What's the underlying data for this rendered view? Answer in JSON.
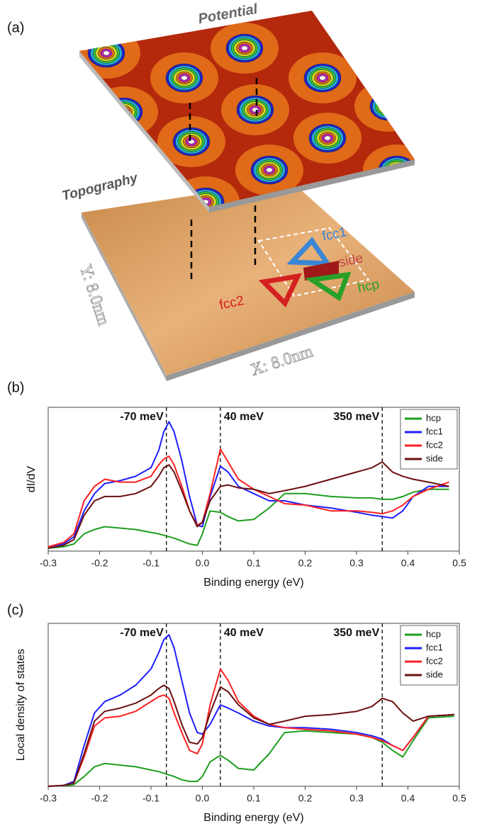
{
  "figure_a": {
    "label": "(a)",
    "potential": "Potential",
    "topography": "Topography",
    "sites": [
      "fcc1",
      "side",
      "hcp",
      "fcc2"
    ],
    "y_axis": "Y: 8.0nm",
    "x_axis": "X: 8.0nm"
  },
  "chart_data": [
    {
      "type": "line",
      "panel": "(b)",
      "xlabel": "Binding energy (eV)",
      "ylabel": "dI/dV",
      "x": [
        -0.3,
        -0.27,
        -0.25,
        -0.23,
        -0.21,
        -0.19,
        -0.16,
        -0.13,
        -0.1,
        -0.085,
        -0.075,
        -0.065,
        -0.055,
        -0.04,
        -0.025,
        -0.01,
        0.0,
        0.015,
        0.035,
        0.05,
        0.07,
        0.1,
        0.13,
        0.16,
        0.2,
        0.25,
        0.3,
        0.33,
        0.35,
        0.37,
        0.39,
        0.41,
        0.44,
        0.48
      ],
      "series": [
        {
          "name": "hcp",
          "color": "#1e9e1e",
          "values": [
            0.02,
            0.03,
            0.05,
            0.12,
            0.15,
            0.17,
            0.16,
            0.15,
            0.13,
            0.12,
            0.11,
            0.1,
            0.09,
            0.07,
            0.05,
            0.04,
            0.12,
            0.28,
            0.27,
            0.24,
            0.21,
            0.22,
            0.3,
            0.4,
            0.4,
            0.38,
            0.37,
            0.37,
            0.36,
            0.36,
            0.38,
            0.41,
            0.43,
            0.43
          ]
        },
        {
          "name": "fcc1",
          "color": "#1f1fff",
          "values": [
            0.03,
            0.05,
            0.1,
            0.28,
            0.4,
            0.47,
            0.49,
            0.52,
            0.58,
            0.7,
            0.83,
            0.9,
            0.83,
            0.63,
            0.38,
            0.18,
            0.17,
            0.38,
            0.59,
            0.55,
            0.45,
            0.4,
            0.35,
            0.35,
            0.32,
            0.3,
            0.27,
            0.25,
            0.24,
            0.23,
            0.28,
            0.38,
            0.45,
            0.45
          ]
        },
        {
          "name": "fcc2",
          "color": "#ff2020",
          "values": [
            0.03,
            0.06,
            0.12,
            0.35,
            0.45,
            0.5,
            0.48,
            0.48,
            0.52,
            0.6,
            0.64,
            0.66,
            0.6,
            0.45,
            0.28,
            0.18,
            0.2,
            0.4,
            0.71,
            0.62,
            0.5,
            0.43,
            0.38,
            0.33,
            0.32,
            0.28,
            0.28,
            0.27,
            0.26,
            0.28,
            0.32,
            0.38,
            0.43,
            0.48
          ]
        },
        {
          "name": "side",
          "color": "#6a1010",
          "values": [
            0.02,
            0.04,
            0.08,
            0.25,
            0.35,
            0.38,
            0.38,
            0.4,
            0.45,
            0.52,
            0.58,
            0.6,
            0.55,
            0.42,
            0.28,
            0.17,
            0.2,
            0.35,
            0.45,
            0.46,
            0.44,
            0.43,
            0.4,
            0.42,
            0.45,
            0.5,
            0.55,
            0.58,
            0.62,
            0.55,
            0.52,
            0.5,
            0.48,
            0.45
          ]
        }
      ],
      "xlim": [
        -0.3,
        0.5
      ],
      "xticks": [
        -0.3,
        -0.2,
        -0.1,
        {
          "value": 0,
          "label": "0.0"
        },
        0.1,
        0.2,
        0.3,
        0.4,
        0.5
      ],
      "ylim": [
        0,
        1
      ],
      "legend": "upper right",
      "markers": [
        {
          "x": -0.07,
          "label": "-70 meV"
        },
        {
          "x": 0.035,
          "label": "40 meV"
        },
        {
          "x": 0.35,
          "label": "350 meV"
        }
      ]
    },
    {
      "type": "line",
      "panel": "(c)",
      "xlabel": "Binding energy (eV)",
      "ylabel": "Local density of states",
      "x": [
        -0.3,
        -0.27,
        -0.25,
        -0.23,
        -0.21,
        -0.19,
        -0.16,
        -0.13,
        -0.1,
        -0.085,
        -0.075,
        -0.065,
        -0.055,
        -0.04,
        -0.025,
        -0.01,
        0.0,
        0.015,
        0.035,
        0.05,
        0.07,
        0.1,
        0.13,
        0.16,
        0.2,
        0.25,
        0.3,
        0.33,
        0.35,
        0.37,
        0.39,
        0.41,
        0.44,
        0.49
      ],
      "series": [
        {
          "name": "hcp",
          "color": "#1e9e1e",
          "values": [
            0,
            0.003,
            0.01,
            0.06,
            0.12,
            0.14,
            0.13,
            0.12,
            0.1,
            0.09,
            0.08,
            0.07,
            0.06,
            0.04,
            0.03,
            0.03,
            0.06,
            0.15,
            0.19,
            0.16,
            0.11,
            0.1,
            0.2,
            0.33,
            0.34,
            0.33,
            0.32,
            0.3,
            0.27,
            0.22,
            0.18,
            0.28,
            0.42,
            0.43
          ]
        },
        {
          "name": "fcc1",
          "color": "#1f1fff",
          "values": [
            0,
            0.005,
            0.03,
            0.25,
            0.45,
            0.52,
            0.56,
            0.62,
            0.72,
            0.82,
            0.9,
            0.93,
            0.85,
            0.65,
            0.45,
            0.33,
            0.32,
            0.38,
            0.5,
            0.48,
            0.45,
            0.4,
            0.37,
            0.36,
            0.36,
            0.35,
            0.33,
            0.31,
            0.29,
            0.25,
            0.22,
            0.3,
            0.43,
            0.44
          ]
        },
        {
          "name": "fcc2",
          "color": "#ff2020",
          "values": [
            0,
            0.005,
            0.02,
            0.18,
            0.37,
            0.42,
            0.43,
            0.46,
            0.52,
            0.55,
            0.56,
            0.54,
            0.45,
            0.33,
            0.22,
            0.2,
            0.26,
            0.5,
            0.72,
            0.65,
            0.52,
            0.43,
            0.38,
            0.36,
            0.35,
            0.34,
            0.32,
            0.3,
            0.28,
            0.25,
            0.22,
            0.3,
            0.43,
            0.44
          ]
        },
        {
          "name": "side",
          "color": "#6a1010",
          "values": [
            0,
            0.005,
            0.02,
            0.2,
            0.4,
            0.46,
            0.48,
            0.51,
            0.56,
            0.6,
            0.62,
            0.6,
            0.52,
            0.38,
            0.27,
            0.26,
            0.3,
            0.45,
            0.61,
            0.58,
            0.5,
            0.42,
            0.38,
            0.4,
            0.43,
            0.44,
            0.46,
            0.49,
            0.54,
            0.52,
            0.45,
            0.4,
            0.43,
            0.44
          ]
        }
      ],
      "xlim": [
        -0.3,
        0.5
      ],
      "xticks": [
        -0.3,
        -0.2,
        -0.1,
        {
          "value": 0,
          "label": "0.0"
        },
        0.1,
        0.2,
        0.3,
        0.4,
        0.5
      ],
      "ylim": [
        0,
        1
      ],
      "legend": "upper right",
      "markers": [
        {
          "x": -0.07,
          "label": "-70 meV"
        },
        {
          "x": 0.035,
          "label": "40 meV"
        },
        {
          "x": 0.35,
          "label": "350 meV"
        }
      ]
    }
  ]
}
